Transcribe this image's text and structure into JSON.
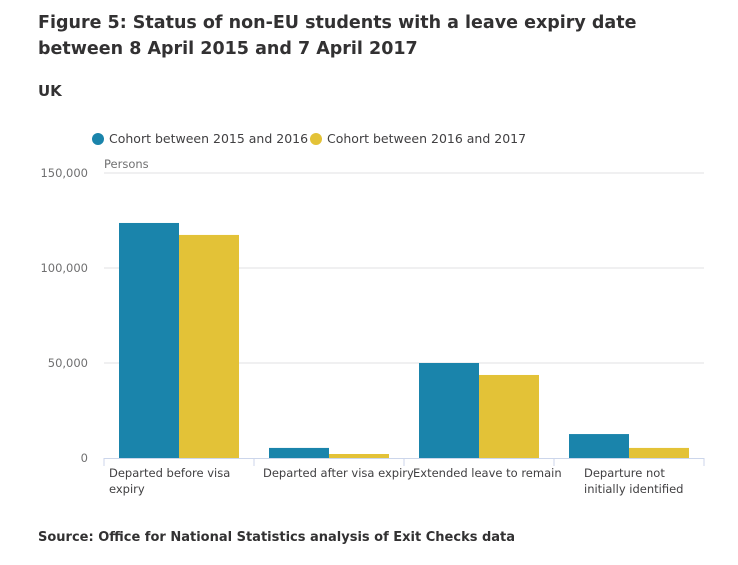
{
  "chart_data": {
    "type": "bar",
    "title": "Figure 5: Status of non-EU students with a leave expiry date between 8 April 2015 and 7 April 2017",
    "subtitle": "UK",
    "ylabel": "Persons",
    "xlabel": "",
    "ylim": [
      0,
      150000
    ],
    "yticks": [
      0,
      50000,
      100000,
      150000
    ],
    "ytick_labels": [
      "0",
      "50,000",
      "100,000",
      "150,000"
    ],
    "grid": true,
    "legend_position": "top-left",
    "categories": [
      [
        "Departed before visa",
        "expiry"
      ],
      [
        "Departed after visa expiry"
      ],
      [
        "Extended leave to remain"
      ],
      [
        "Departure not",
        "initially identified"
      ]
    ],
    "series": [
      {
        "name": "Cohort between 2015 and 2016",
        "color": "#1a84ab",
        "values": [
          123700,
          5300,
          50000,
          12600
        ]
      },
      {
        "name": "Cohort between 2016 and 2017",
        "color": "#e3c237",
        "values": [
          117400,
          2100,
          43700,
          5300
        ]
      }
    ],
    "source": "Source: Office for National Statistics analysis of Exit Checks data"
  }
}
